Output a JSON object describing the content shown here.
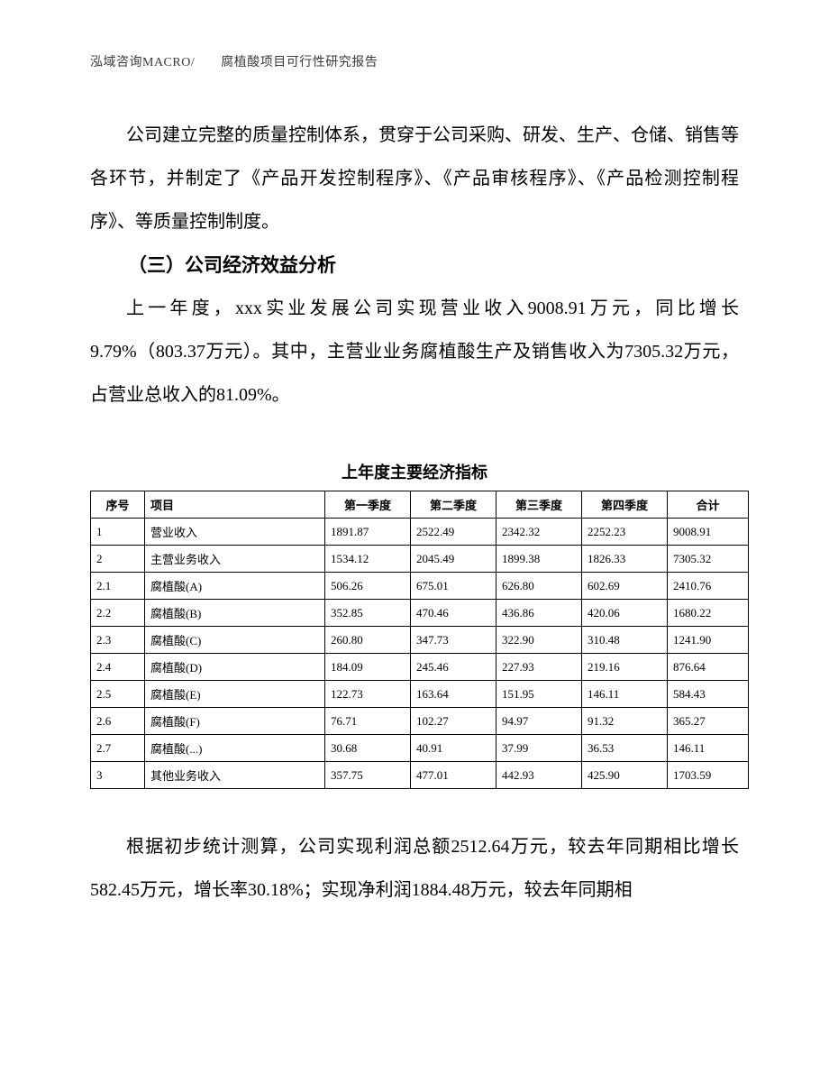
{
  "header": "泓域咨询MACRO/　　腐植酸项目可行性研究报告",
  "para1": "公司建立完整的质量控制体系，贯穿于公司采购、研发、生产、仓储、销售等各环节，并制定了《产品开发控制程序》、《产品审核程序》、《产品检测控制程序》、等质量控制制度。",
  "section_title": "（三）公司经济效益分析",
  "para2": "上一年度，xxx实业发展公司实现营业收入9008.91万元，同比增长9.79%（803.37万元）。其中，主营业业务腐植酸生产及销售收入为7305.32万元，占营业总收入的81.09%。",
  "table_title": "上年度主要经济指标",
  "table": {
    "columns": [
      "序号",
      "项目",
      "第一季度",
      "第二季度",
      "第三季度",
      "第四季度",
      "合计"
    ],
    "rows": [
      [
        "1",
        "营业收入",
        "1891.87",
        "2522.49",
        "2342.32",
        "2252.23",
        "9008.91"
      ],
      [
        "2",
        "主营业务收入",
        "1534.12",
        "2045.49",
        "1899.38",
        "1826.33",
        "7305.32"
      ],
      [
        "2.1",
        "腐植酸(A)",
        "506.26",
        "675.01",
        "626.80",
        "602.69",
        "2410.76"
      ],
      [
        "2.2",
        "腐植酸(B)",
        "352.85",
        "470.46",
        "436.86",
        "420.06",
        "1680.22"
      ],
      [
        "2.3",
        "腐植酸(C)",
        "260.80",
        "347.73",
        "322.90",
        "310.48",
        "1241.90"
      ],
      [
        "2.4",
        "腐植酸(D)",
        "184.09",
        "245.46",
        "227.93",
        "219.16",
        "876.64"
      ],
      [
        "2.5",
        "腐植酸(E)",
        "122.73",
        "163.64",
        "151.95",
        "146.11",
        "584.43"
      ],
      [
        "2.6",
        "腐植酸(F)",
        "76.71",
        "102.27",
        "94.97",
        "91.32",
        "365.27"
      ],
      [
        "2.7",
        "腐植酸(...)",
        "30.68",
        "40.91",
        "37.99",
        "36.53",
        "146.11"
      ],
      [
        "3",
        "其他业务收入",
        "357.75",
        "477.01",
        "442.93",
        "425.90",
        "1703.59"
      ]
    ]
  },
  "para3": "根据初步统计测算，公司实现利润总额2512.64万元，较去年同期相比增长582.45万元，增长率30.18%；实现净利润1884.48万元，较去年同期相"
}
